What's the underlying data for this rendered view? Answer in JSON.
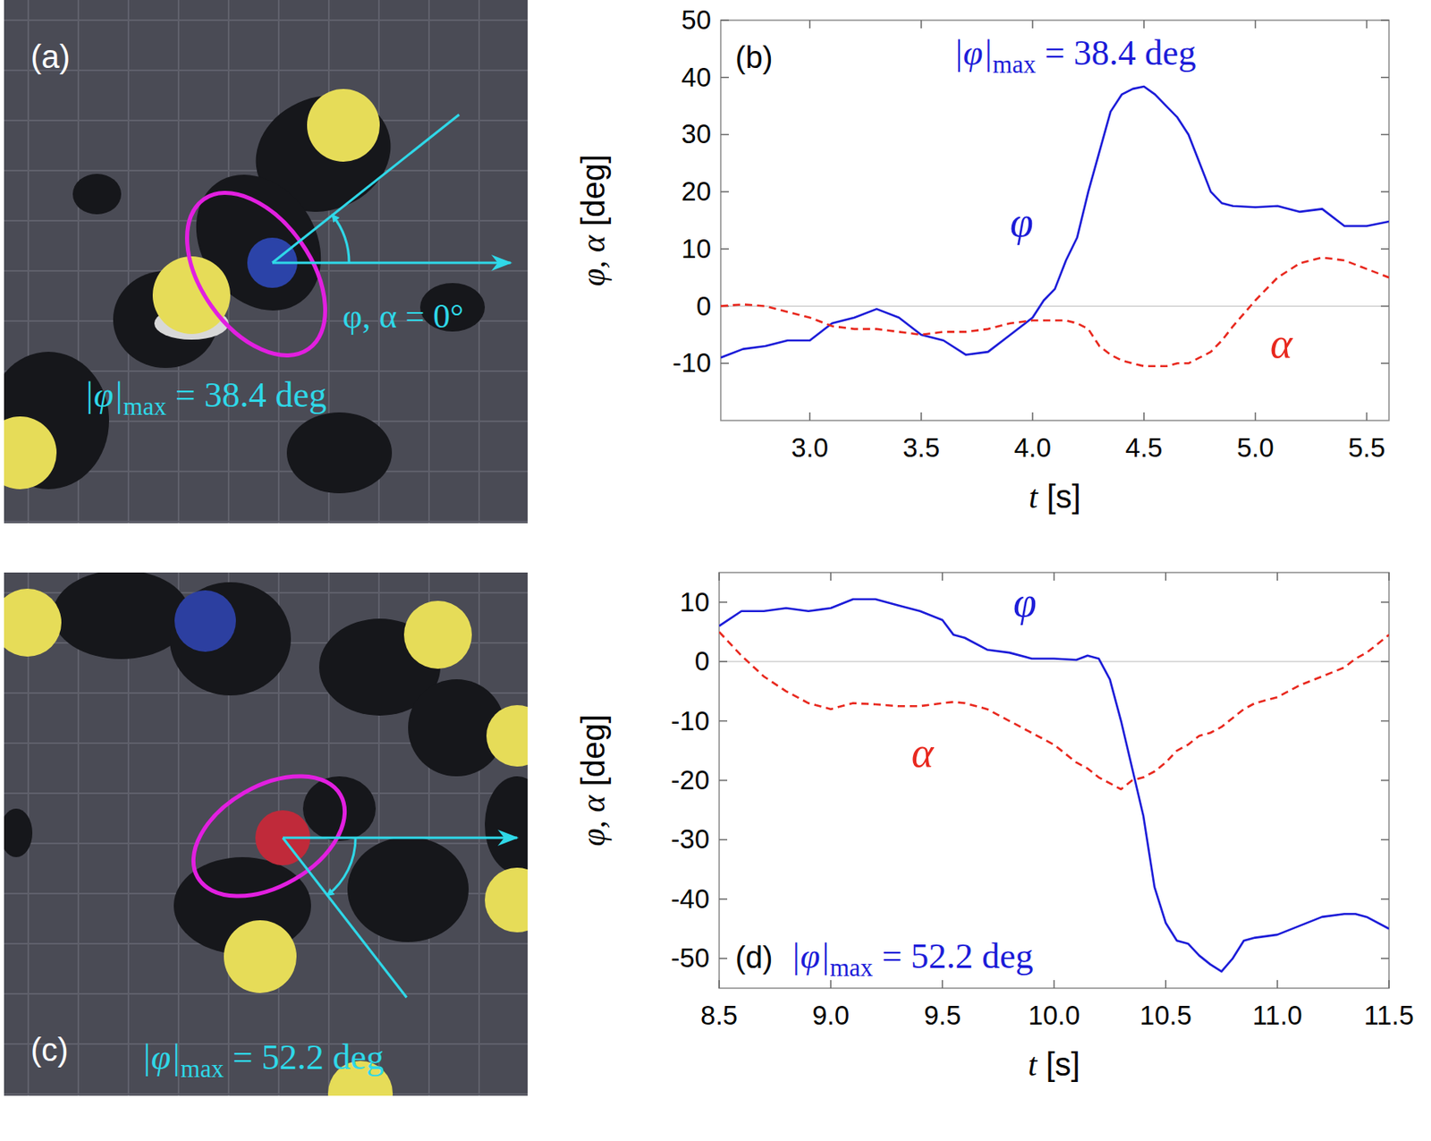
{
  "photos": [
    {
      "panel_label": "(a)",
      "angle": 38.4,
      "reference_label": "φ, α = 0°",
      "annotation": {
        "main": "|φ|",
        "sub": "max",
        "rest": " = 38.4 deg"
      },
      "color": "#2fd8e8"
    },
    {
      "panel_label": "(c)",
      "angle": -52.2,
      "annotation": {
        "main": "|φ|",
        "sub": "max",
        "rest": " = 52.2 deg"
      },
      "color": "#2fd8e8"
    }
  ],
  "chart_data": [
    {
      "type": "line",
      "panel_label": "(b)",
      "x_label": "t [s]",
      "y_label": "φ, α [deg]",
      "annotation": {
        "main": "|φ|",
        "sub": "max",
        "rest": " = 38.4 deg"
      },
      "grid": false,
      "xlim": [
        2.6,
        5.6
      ],
      "ylim": [
        -20,
        50
      ],
      "xticks": [
        {
          "value": 3,
          "label": "3.0"
        },
        3.5,
        {
          "value": 4,
          "label": "4.0"
        },
        4.5,
        {
          "value": 5,
          "label": "5.0"
        },
        5.5
      ],
      "yticks": [
        -10,
        0,
        10,
        20,
        30,
        40,
        50
      ],
      "x": [
        2.6,
        2.7,
        2.8,
        2.9,
        3.0,
        3.1,
        3.2,
        3.3,
        3.4,
        3.5,
        3.6,
        3.7,
        3.8,
        3.9,
        4.0,
        4.05,
        4.1,
        4.15,
        4.2,
        4.25,
        4.3,
        4.35,
        4.4,
        4.45,
        4.5,
        4.55,
        4.6,
        4.65,
        4.7,
        4.75,
        4.8,
        4.85,
        4.9,
        5.0,
        5.1,
        5.2,
        5.3,
        5.4,
        5.5,
        5.6
      ],
      "series": [
        {
          "name": "φ",
          "color": "#1c1cd8",
          "line_style": "solid",
          "values": [
            -9,
            -7.5,
            -7,
            -6,
            -6,
            -3,
            -2,
            -0.5,
            -2,
            -5,
            -6,
            -8.5,
            -8,
            -5,
            -2,
            1,
            3,
            8,
            12,
            20,
            27,
            34,
            37,
            38,
            38.4,
            37,
            35,
            33,
            30,
            25,
            20,
            18,
            17.5,
            17.3,
            17.5,
            16.5,
            17,
            14,
            14,
            14.8
          ]
        },
        {
          "name": "α",
          "color": "#e8281e",
          "line_style": "dashed",
          "values": [
            0,
            0.3,
            0,
            -1,
            -2,
            -3.5,
            -4,
            -4,
            -4.5,
            -5,
            -4.5,
            -4.5,
            -4,
            -3,
            -2.5,
            -2.5,
            -2.5,
            -2.5,
            -3,
            -4,
            -7,
            -8.5,
            -9.5,
            -10,
            -10.5,
            -10.5,
            -10.5,
            -10,
            -10,
            -9,
            -8,
            -6,
            -3.5,
            1,
            5,
            7.5,
            8.5,
            8,
            6.5,
            5
          ]
        }
      ]
    },
    {
      "type": "line",
      "panel_label": "(d)",
      "x_label": "t [s]",
      "y_label": "φ, α [deg]",
      "annotation": {
        "main": "|φ|",
        "sub": "max",
        "rest": " = 52.2 deg"
      },
      "grid": false,
      "xlim": [
        8.5,
        11.5
      ],
      "ylim": [
        -55,
        15
      ],
      "xticks": [
        8.5,
        {
          "value": 9,
          "label": "9.0"
        },
        9.5,
        {
          "value": 10,
          "label": "10.0"
        },
        10.5,
        {
          "value": 11,
          "label": "11.0"
        },
        11.5
      ],
      "yticks": [
        -50,
        -40,
        -30,
        -20,
        -10,
        0,
        10
      ],
      "x": [
        8.5,
        8.6,
        8.7,
        8.8,
        8.9,
        9.0,
        9.1,
        9.2,
        9.3,
        9.4,
        9.5,
        9.55,
        9.6,
        9.7,
        9.8,
        9.9,
        10.0,
        10.1,
        10.15,
        10.2,
        10.25,
        10.3,
        10.35,
        10.4,
        10.45,
        10.5,
        10.55,
        10.6,
        10.65,
        10.7,
        10.75,
        10.8,
        10.85,
        10.9,
        11.0,
        11.1,
        11.2,
        11.3,
        11.35,
        11.4,
        11.5
      ],
      "series": [
        {
          "name": "φ",
          "color": "#1c1cd8",
          "line_style": "solid",
          "values": [
            6,
            8.5,
            8.5,
            9,
            8.5,
            9,
            10.5,
            10.5,
            9.5,
            8.5,
            7,
            4.5,
            4,
            2,
            1.5,
            0.5,
            0.5,
            0.3,
            1,
            0.5,
            -3,
            -10,
            -18,
            -26,
            -38,
            -44,
            -47,
            -47.5,
            -49.5,
            -51,
            -52.2,
            -50,
            -47,
            -46.5,
            -46,
            -44.5,
            -43,
            -42.5,
            -42.5,
            -43,
            -45
          ]
        },
        {
          "name": "α",
          "color": "#e8281e",
          "line_style": "dashed",
          "values": [
            5,
            1,
            -2.5,
            -5,
            -7,
            -8,
            -7,
            -7.2,
            -7.5,
            -7.5,
            -7,
            -6.8,
            -7,
            -8,
            -10,
            -12,
            -14,
            -17,
            -18,
            -19.5,
            -20.5,
            -21.5,
            -20,
            -19.5,
            -18.5,
            -17,
            -15,
            -14,
            -12.5,
            -12,
            -11,
            -9.5,
            -8,
            -7,
            -6,
            -4,
            -2.5,
            -1,
            0.5,
            1.5,
            4.5
          ]
        }
      ]
    }
  ]
}
